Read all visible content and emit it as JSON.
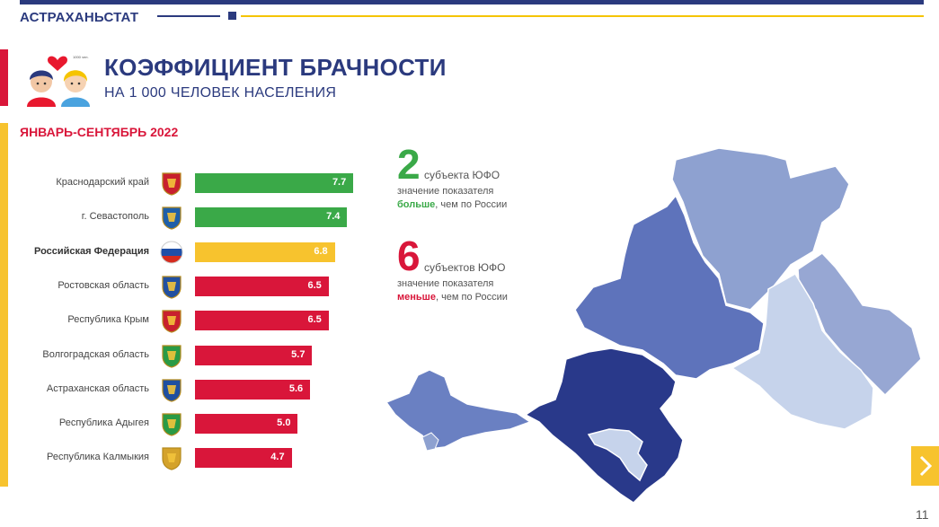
{
  "header": {
    "org": "АСТРАХАНЬСТАТ"
  },
  "title": "КОЭФФИЦИЕНТ БРАЧНОСТИ",
  "subtitle": "НА 1 000 ЧЕЛОВЕК НАСЕЛЕНИЯ",
  "illustration_caption": "1000 чел.",
  "period": "ЯНВАРЬ-СЕНТЯБРЬ 2022",
  "colors": {
    "above": "#3aa948",
    "russia": "#f7c32e",
    "below": "#d9163a",
    "brand": "#2b3a7e"
  },
  "chart_data": {
    "type": "bar",
    "orientation": "horizontal",
    "title": "",
    "categories": [
      "Краснодарский край",
      "г. Севастополь",
      "Российская Федерация",
      "Ростовская область",
      "Республика Крым",
      "Волгоградская область",
      "Астраханская область",
      "Республика Адыгея",
      "Республика Калмыкия"
    ],
    "values": [
      7.7,
      7.4,
      6.8,
      6.5,
      6.5,
      5.7,
      5.6,
      5.0,
      4.7
    ],
    "value_labels": [
      "7.7",
      "7.4",
      "6.8",
      "6.5",
      "6.5",
      "5.7",
      "5.6",
      "5.0",
      "4.7"
    ],
    "bar_colors": [
      "above",
      "above",
      "russia",
      "below",
      "below",
      "below",
      "below",
      "below",
      "below"
    ],
    "xlim": [
      0,
      9
    ],
    "grid": false,
    "legend": "none"
  },
  "stats": {
    "above": {
      "count": "2",
      "title": "субъекта ЮФО",
      "line1": "значение показателя",
      "highlight": "больше",
      "rest": ", чем по России"
    },
    "below": {
      "count": "6",
      "title": "субъектов ЮФО",
      "line1": "значение показателя",
      "highlight": "меньше",
      "rest": ", чем по России"
    }
  },
  "page_number": "11"
}
